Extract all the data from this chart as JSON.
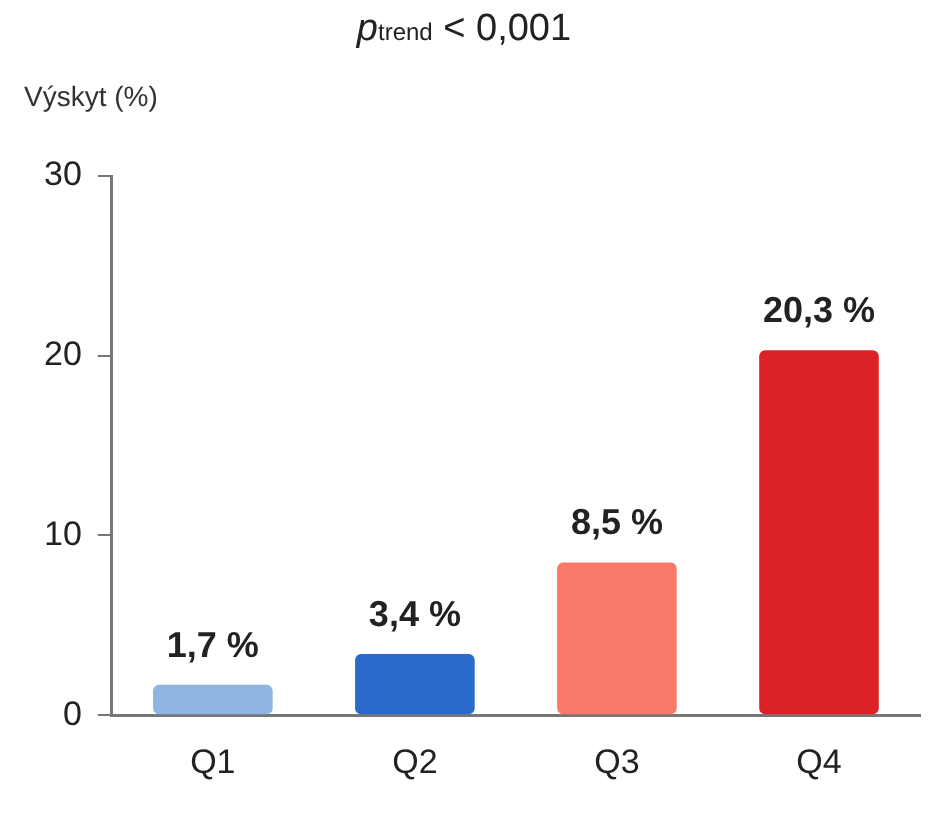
{
  "chart_data": {
    "type": "bar",
    "title": "p$_{trend}$ < 0,001",
    "ylabel": "Výskyt (%)",
    "categories": [
      "Q1",
      "Q2",
      "Q3",
      "Q4"
    ],
    "values": [
      1.7,
      3.4,
      8.5,
      20.3
    ],
    "colors": [
      "#8db4e2",
      "#2a6acb",
      "#fa7a6a",
      "#dc2226"
    ],
    "value_labels": [
      "1,7 %",
      "3,4 %",
      "8,5 %",
      "20,3 %"
    ],
    "ylim": [
      0,
      30
    ],
    "yticks": [
      0,
      10,
      20,
      30
    ],
    "grid": false,
    "legend": false
  }
}
